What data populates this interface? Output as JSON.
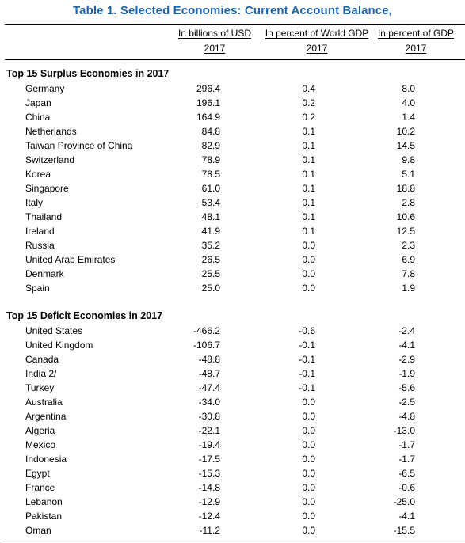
{
  "title": "Table 1. Selected Economies: Current Account Balance,",
  "columns": [
    {
      "label": "In billions of USD",
      "year": "2017"
    },
    {
      "label": "In percent of World GDP",
      "year": "2017"
    },
    {
      "label": "In percent of  GDP",
      "year": "2017"
    }
  ],
  "surplus_title": "Top 15 Surplus Economies in 2017",
  "surplus": [
    {
      "name": "Germany",
      "usd": "296.4",
      "world": "0.4",
      "gdp": "8.0"
    },
    {
      "name": "Japan",
      "usd": "196.1",
      "world": "0.2",
      "gdp": "4.0"
    },
    {
      "name": "China",
      "usd": "164.9",
      "world": "0.2",
      "gdp": "1.4"
    },
    {
      "name": "Netherlands",
      "usd": "84.8",
      "world": "0.1",
      "gdp": "10.2"
    },
    {
      "name": "Taiwan Province of China",
      "usd": "82.9",
      "world": "0.1",
      "gdp": "14.5"
    },
    {
      "name": "Switzerland",
      "usd": "78.9",
      "world": "0.1",
      "gdp": "9.8"
    },
    {
      "name": "Korea",
      "usd": "78.5",
      "world": "0.1",
      "gdp": "5.1"
    },
    {
      "name": "Singapore",
      "usd": "61.0",
      "world": "0.1",
      "gdp": "18.8"
    },
    {
      "name": "Italy",
      "usd": "53.4",
      "world": "0.1",
      "gdp": "2.8"
    },
    {
      "name": "Thailand",
      "usd": "48.1",
      "world": "0.1",
      "gdp": "10.6"
    },
    {
      "name": "Ireland",
      "usd": "41.9",
      "world": "0.1",
      "gdp": "12.5"
    },
    {
      "name": "Russia",
      "usd": "35.2",
      "world": "0.0",
      "gdp": "2.3"
    },
    {
      "name": "United Arab Emirates",
      "usd": "26.5",
      "world": "0.0",
      "gdp": "6.9"
    },
    {
      "name": "Denmark",
      "usd": "25.5",
      "world": "0.0",
      "gdp": "7.8"
    },
    {
      "name": "Spain",
      "usd": "25.0",
      "world": "0.0",
      "gdp": "1.9"
    }
  ],
  "deficit_title": "Top 15 Deficit Economies in 2017",
  "deficit": [
    {
      "name": "United States",
      "usd": "-466.2",
      "world": "-0.6",
      "gdp": "-2.4"
    },
    {
      "name": "United Kingdom",
      "usd": "-106.7",
      "world": "-0.1",
      "gdp": "-4.1"
    },
    {
      "name": "Canada",
      "usd": "-48.8",
      "world": "-0.1",
      "gdp": "-2.9"
    },
    {
      "name": "India  2/",
      "usd": "-48.7",
      "world": "-0.1",
      "gdp": "-1.9"
    },
    {
      "name": "Turkey",
      "usd": "-47.4",
      "world": "-0.1",
      "gdp": "-5.6"
    },
    {
      "name": "Australia",
      "usd": "-34.0",
      "world": "0.0",
      "gdp": "-2.5"
    },
    {
      "name": "Argentina",
      "usd": "-30.8",
      "world": "0.0",
      "gdp": "-4.8"
    },
    {
      "name": "Algeria",
      "usd": "-22.1",
      "world": "0.0",
      "gdp": "-13.0"
    },
    {
      "name": "Mexico",
      "usd": "-19.4",
      "world": "0.0",
      "gdp": "-1.7"
    },
    {
      "name": "Indonesia",
      "usd": "-17.5",
      "world": "0.0",
      "gdp": "-1.7"
    },
    {
      "name": "Egypt",
      "usd": "-15.3",
      "world": "0.0",
      "gdp": "-6.5"
    },
    {
      "name": "France",
      "usd": "-14.8",
      "world": "0.0",
      "gdp": "-0.6"
    },
    {
      "name": "Lebanon",
      "usd": "-12.9",
      "world": "0.0",
      "gdp": "-25.0"
    },
    {
      "name": "Pakistan",
      "usd": "-12.4",
      "world": "0.0",
      "gdp": "-4.1"
    },
    {
      "name": "Oman",
      "usd": "-11.2",
      "world": "0.0",
      "gdp": "-15.5"
    }
  ]
}
